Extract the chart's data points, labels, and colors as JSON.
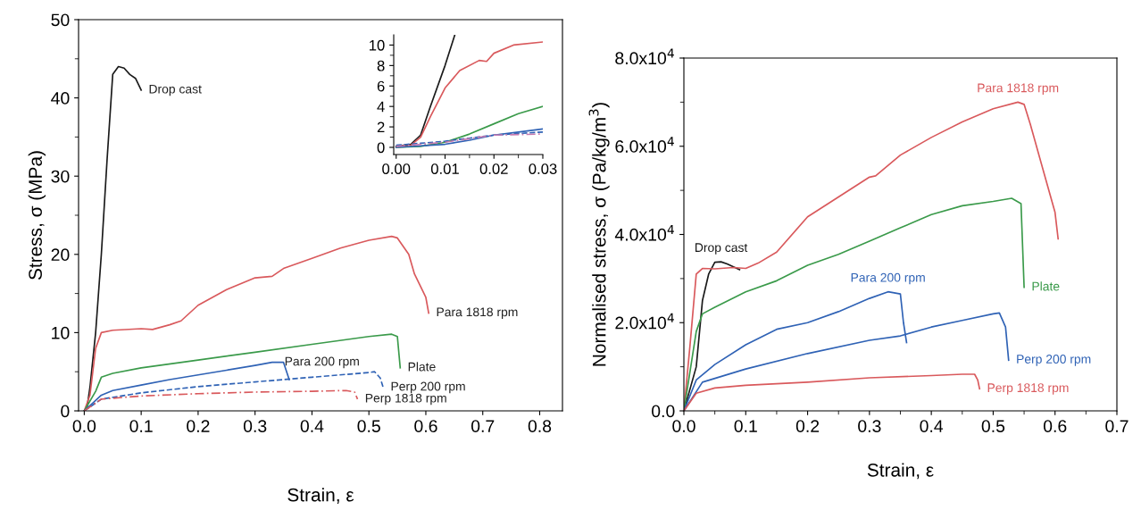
{
  "chart_data": [
    {
      "type": "line",
      "xlabel": "Strain, ε",
      "ylabel": "Stress, σ (MPa)",
      "xlim": [
        -0.01,
        0.84
      ],
      "ylim": [
        0,
        50
      ],
      "xticks": [
        {
          "value": 0,
          "label": "0.0"
        },
        {
          "value": 0.1,
          "label": "0.1"
        },
        {
          "value": 0.2,
          "label": "0.2"
        },
        {
          "value": 0.3,
          "label": "0.3"
        },
        {
          "value": 0.4,
          "label": "0.4"
        },
        {
          "value": 0.5,
          "label": "0.5"
        },
        {
          "value": 0.6,
          "label": "0.6"
        },
        {
          "value": 0.7,
          "label": "0.7"
        },
        {
          "value": 0.8,
          "label": "0.8"
        }
      ],
      "yticks": [
        0,
        {
          "value": 5,
          "label": null
        },
        10,
        {
          "value": 15,
          "label": null
        },
        20,
        {
          "value": 25,
          "label": null
        },
        30,
        {
          "value": 35,
          "label": null
        },
        40,
        {
          "value": 45,
          "label": null
        },
        50
      ],
      "grid": false,
      "legend": false,
      "marker": "none",
      "series": [
        {
          "name": "Drop cast",
          "color": "#1a1a1a",
          "line_style": "solid",
          "x": [
            0,
            0.005,
            0.01,
            0.02,
            0.03,
            0.04,
            0.05,
            0.06,
            0.07,
            0.08,
            0.09,
            0.1
          ],
          "values": [
            0,
            0.5,
            3,
            10,
            20,
            32,
            43,
            44,
            43.8,
            43,
            42.5,
            41
          ]
        },
        {
          "name": "Para 1818 rpm",
          "color": "#d9595c",
          "line_style": "solid",
          "x": [
            0,
            0.01,
            0.02,
            0.03,
            0.05,
            0.1,
            0.12,
            0.15,
            0.17,
            0.2,
            0.25,
            0.3,
            0.33,
            0.35,
            0.4,
            0.45,
            0.5,
            0.54,
            0.55,
            0.57,
            0.58,
            0.6,
            0.605
          ],
          "values": [
            0,
            2,
            8,
            10,
            10.3,
            10.5,
            10.4,
            11,
            11.5,
            13.5,
            15.5,
            17,
            17.2,
            18.2,
            19.5,
            20.8,
            21.8,
            22.3,
            22.1,
            20,
            17.5,
            14.5,
            12.5
          ]
        },
        {
          "name": "Plate",
          "color": "#3a9a4a",
          "line_style": "solid",
          "x": [
            0,
            0.02,
            0.03,
            0.05,
            0.1,
            0.2,
            0.3,
            0.4,
            0.5,
            0.54,
            0.55,
            0.555
          ],
          "values": [
            0,
            2.5,
            4.3,
            4.8,
            5.5,
            6.5,
            7.5,
            8.5,
            9.5,
            9.8,
            9.5,
            5.5
          ]
        },
        {
          "name": "Para 200 rpm",
          "color": "#2f62b5",
          "line_style": "solid",
          "x": [
            0,
            0.03,
            0.05,
            0.1,
            0.15,
            0.2,
            0.25,
            0.3,
            0.33,
            0.35,
            0.36
          ],
          "values": [
            0,
            2,
            2.6,
            3.3,
            4.0,
            4.6,
            5.2,
            5.8,
            6.2,
            6.2,
            4.0
          ]
        },
        {
          "name": "Perp 200 rpm",
          "color": "#2f62b5",
          "line_style": "dashed",
          "x": [
            0,
            0.03,
            0.1,
            0.2,
            0.3,
            0.4,
            0.5,
            0.51,
            0.52,
            0.525
          ],
          "values": [
            0,
            1.5,
            2.3,
            3.1,
            3.7,
            4.3,
            4.9,
            5.0,
            4.2,
            3.0
          ]
        },
        {
          "name": "Perp 1818 rpm",
          "color": "#d9595c",
          "line_style": "dotted",
          "x": [
            0,
            0.03,
            0.1,
            0.2,
            0.3,
            0.4,
            0.46,
            0.475,
            0.48
          ],
          "values": [
            0,
            1.5,
            1.9,
            2.2,
            2.4,
            2.5,
            2.6,
            2.4,
            1.5
          ]
        }
      ]
    },
    {
      "type": "line",
      "xlim": [
        -0.0005,
        0.03
      ],
      "ylim": [
        -0.7,
        11
      ],
      "xticks": [
        {
          "value": 0,
          "label": "0.00"
        },
        {
          "value": 0.005,
          "label": null
        },
        {
          "value": 0.01,
          "label": "0.01"
        },
        {
          "value": 0.015,
          "label": null
        },
        {
          "value": 0.02,
          "label": "0.02"
        },
        {
          "value": 0.025,
          "label": null
        },
        {
          "value": 0.03,
          "label": "0.03"
        }
      ],
      "yticks": [
        0,
        {
          "value": 1,
          "label": null
        },
        2,
        {
          "value": 3,
          "label": null
        },
        4,
        {
          "value": 5,
          "label": null
        },
        6,
        {
          "value": 7,
          "label": null
        },
        8,
        {
          "value": 9,
          "label": null
        },
        10
      ],
      "grid": false,
      "legend": false,
      "marker": "none",
      "series": [
        {
          "color": "#1a1a1a",
          "line_style": "solid",
          "x": [
            0,
            0.003,
            0.005,
            0.007,
            0.01,
            0.012
          ],
          "values": [
            0.1,
            0.3,
            1.2,
            4,
            8,
            11
          ]
        },
        {
          "color": "#d9595c",
          "line_style": "solid",
          "x": [
            0,
            0.003,
            0.005,
            0.007,
            0.01,
            0.013,
            0.017,
            0.0185,
            0.02,
            0.024,
            0.03
          ],
          "values": [
            0,
            0.2,
            1,
            3,
            5.8,
            7.5,
            8.5,
            8.4,
            9.2,
            10,
            10.3
          ]
        },
        {
          "color": "#3a9a4a",
          "line_style": "solid",
          "x": [
            0,
            0.005,
            0.01,
            0.015,
            0.02,
            0.025,
            0.03
          ],
          "values": [
            0,
            0.1,
            0.5,
            1.3,
            2.3,
            3.3,
            4.0
          ]
        },
        {
          "color": "#2f62b5",
          "line_style": "solid",
          "x": [
            0,
            0.01,
            0.015,
            0.02,
            0.025,
            0.03
          ],
          "values": [
            0,
            0.3,
            0.7,
            1.2,
            1.5,
            1.8
          ]
        },
        {
          "color": "#2f62b5",
          "line_style": "dashed",
          "x": [
            0,
            0.005,
            0.01,
            0.02,
            0.03
          ],
          "values": [
            0.2,
            0.4,
            0.6,
            1.2,
            1.5
          ]
        },
        {
          "color": "#c77ab0",
          "line_style": "dotted",
          "x": [
            0,
            0.01,
            0.02,
            0.03
          ],
          "values": [
            0.1,
            0.5,
            1.2,
            1.3
          ]
        }
      ]
    },
    {
      "type": "line",
      "xlabel": "Strain, ε",
      "ylabel": "Normalised stress, σ (Pa/kg/m$^{3}$)",
      "xlim": [
        0,
        0.7
      ],
      "ylim": [
        0,
        80000
      ],
      "xticks": [
        {
          "value": 0,
          "label": "0.0"
        },
        {
          "value": 0.05,
          "label": null
        },
        {
          "value": 0.1,
          "label": "0.1"
        },
        {
          "value": 0.15,
          "label": null
        },
        {
          "value": 0.2,
          "label": "0.2"
        },
        {
          "value": 0.25,
          "label": null
        },
        {
          "value": 0.3,
          "label": "0.3"
        },
        {
          "value": 0.35,
          "label": null
        },
        {
          "value": 0.4,
          "label": "0.4"
        },
        {
          "value": 0.45,
          "label": null
        },
        {
          "value": 0.5,
          "label": "0.5"
        },
        {
          "value": 0.55,
          "label": null
        },
        {
          "value": 0.6,
          "label": "0.6"
        },
        {
          "value": 0.65,
          "label": null
        },
        {
          "value": 0.7,
          "label": "0.7"
        }
      ],
      "yticks": [
        {
          "value": 0,
          "label": "0.0"
        },
        {
          "value": 10000,
          "label": null
        },
        {
          "value": 20000,
          "label": "2.0x10$^{4}$"
        },
        {
          "value": 30000,
          "label": null
        },
        {
          "value": 40000,
          "label": "4.0x10$^{4}$"
        },
        {
          "value": 50000,
          "label": null
        },
        {
          "value": 60000,
          "label": "6.0x10$^{4}$"
        },
        {
          "value": 70000,
          "label": null
        },
        {
          "value": 80000,
          "label": "8.0x10$^{4}$"
        }
      ],
      "grid": false,
      "legend": false,
      "marker": "none",
      "series": [
        {
          "name": "Drop cast",
          "color": "#1a1a1a",
          "line_style": "solid",
          "x": [
            0,
            0.02,
            0.03,
            0.04,
            0.05,
            0.06,
            0.07,
            0.09
          ],
          "values": [
            0,
            10000,
            25000,
            31000,
            33700,
            33800,
            33300,
            32000
          ]
        },
        {
          "name": "Para 1818 rpm",
          "color": "#d9595c",
          "line_style": "solid",
          "x": [
            0,
            0.01,
            0.02,
            0.03,
            0.05,
            0.08,
            0.1,
            0.12,
            0.15,
            0.2,
            0.25,
            0.3,
            0.31,
            0.35,
            0.4,
            0.45,
            0.5,
            0.54,
            0.55,
            0.56,
            0.58,
            0.6,
            0.605
          ],
          "values": [
            0,
            15000,
            31000,
            32300,
            32200,
            32500,
            32300,
            33500,
            36000,
            44000,
            48500,
            53000,
            53300,
            58000,
            62000,
            65500,
            68500,
            70000,
            69500,
            65000,
            55000,
            45000,
            39000
          ]
        },
        {
          "name": "Plate",
          "color": "#3a9a4a",
          "line_style": "solid",
          "x": [
            0,
            0.02,
            0.03,
            0.05,
            0.1,
            0.15,
            0.2,
            0.25,
            0.3,
            0.35,
            0.4,
            0.45,
            0.5,
            0.53,
            0.545,
            0.55
          ],
          "values": [
            0,
            18000,
            22000,
            23500,
            27000,
            29500,
            33000,
            35500,
            38500,
            41500,
            44500,
            46500,
            47500,
            48200,
            47000,
            28000
          ]
        },
        {
          "name": "Para 200 rpm",
          "color": "#2f62b5",
          "line_style": "solid",
          "x": [
            0,
            0.02,
            0.05,
            0.1,
            0.15,
            0.2,
            0.25,
            0.3,
            0.33,
            0.35,
            0.355,
            0.36
          ],
          "values": [
            0,
            7000,
            10500,
            15000,
            18500,
            20000,
            22500,
            25500,
            27000,
            26500,
            20000,
            15500
          ]
        },
        {
          "name": "Perp 200 rpm",
          "color": "#2f62b5",
          "line_style": "solid",
          "x": [
            0,
            0.03,
            0.1,
            0.2,
            0.3,
            0.35,
            0.4,
            0.45,
            0.5,
            0.51,
            0.52,
            0.525
          ],
          "values": [
            0,
            6500,
            9500,
            13000,
            16000,
            17000,
            19000,
            20500,
            22000,
            22200,
            19000,
            11500
          ]
        },
        {
          "name": "Perp 1818 rpm",
          "color": "#d9595c",
          "line_style": "solid",
          "x": [
            0,
            0.02,
            0.05,
            0.1,
            0.2,
            0.3,
            0.4,
            0.45,
            0.47,
            0.475,
            0.478
          ],
          "values": [
            0,
            4000,
            5200,
            5800,
            6500,
            7500,
            8000,
            8300,
            8300,
            7000,
            5000
          ]
        }
      ]
    }
  ]
}
